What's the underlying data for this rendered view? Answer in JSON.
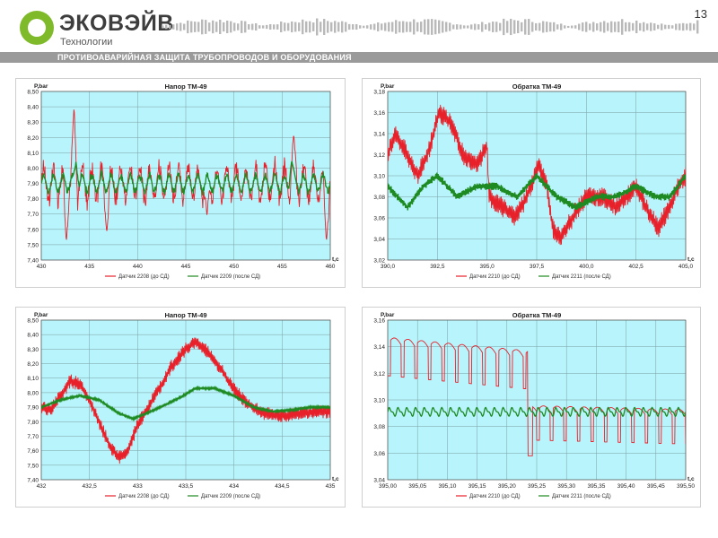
{
  "header": {
    "logo_name": "ЭКОВЭЙВ",
    "logo_sub": "Технологии",
    "page_number": "13",
    "banner": "ПРОТИВОАВАРИЙНАЯ ЗАЩИТА ТРУБОПРОВОДОВ И ОБОРУДОВАНИЯ",
    "colors": {
      "logo": "#7fba2a",
      "banner": "#9a9a9a"
    }
  },
  "chart_data": [
    {
      "type": "line",
      "title": "Напор ТМ-49",
      "ylabel": "P,bar",
      "xlabel": "t,c",
      "xlim": [
        430,
        460
      ],
      "ylim": [
        7.4,
        8.5
      ],
      "xticks": [
        "430",
        "435",
        "440",
        "445",
        "450",
        "455",
        "460"
      ],
      "yticks": [
        "7,40",
        "7,50",
        "7,60",
        "7,70",
        "7,80",
        "7,90",
        "8,00",
        "8,10",
        "8,20",
        "8,30",
        "8,40",
        "8,50"
      ],
      "grid": true,
      "legend_position": "bottom",
      "series": [
        {
          "name": "Датчик 2208 (до СД)",
          "color": "#e8202a",
          "base": 7.9,
          "osc_amp": 0.12,
          "osc_period": 1.0,
          "noise": 0.08,
          "extremes": [
            [
              433.4,
              8.4
            ],
            [
              432.6,
              7.52
            ],
            [
              436.8,
              7.58
            ],
            [
              447.2,
              7.68
            ],
            [
              456.2,
              8.22
            ],
            [
              459.6,
              7.52
            ]
          ]
        },
        {
          "name": "Датчик 2209 (после СД)",
          "color": "#1e8a22",
          "base": 7.9,
          "osc_amp": 0.06,
          "osc_period": 1.0,
          "noise": 0.02,
          "extremes": [
            [
              433.6,
              8.04
            ],
            [
              456.0,
              8.05
            ]
          ]
        }
      ]
    },
    {
      "type": "line",
      "title": "Обратка ТМ-49",
      "ylabel": "P,bar",
      "xlabel": "t,c",
      "xlim": [
        390,
        405
      ],
      "ylim": [
        3.02,
        3.18
      ],
      "xticks": [
        "390,0",
        "392,5",
        "395,0",
        "397,5",
        "400,0",
        "402,5",
        "405,0"
      ],
      "yticks": [
        "3,02",
        "3,04",
        "3,06",
        "3,08",
        "3,10",
        "3,12",
        "3,14",
        "3,16",
        "3,18"
      ],
      "grid": true,
      "legend_position": "bottom",
      "series": [
        {
          "name": "Датчик 2210 (до СД)",
          "color": "#e8202a",
          "noise": 0.008,
          "points": [
            [
              390.0,
              3.12
            ],
            [
              390.4,
              3.14
            ],
            [
              391.0,
              3.12
            ],
            [
              391.5,
              3.1
            ],
            [
              392.0,
              3.12
            ],
            [
              392.6,
              3.16
            ],
            [
              393.2,
              3.15
            ],
            [
              393.8,
              3.12
            ],
            [
              394.5,
              3.11
            ],
            [
              395.0,
              3.13
            ],
            [
              395.1,
              3.08
            ],
            [
              395.8,
              3.07
            ],
            [
              396.4,
              3.06
            ],
            [
              397.0,
              3.08
            ],
            [
              397.6,
              3.11
            ],
            [
              398.0,
              3.09
            ],
            [
              398.3,
              3.05
            ],
            [
              398.7,
              3.04
            ],
            [
              399.3,
              3.06
            ],
            [
              400.0,
              3.08
            ],
            [
              400.8,
              3.08
            ],
            [
              401.5,
              3.07
            ],
            [
              402.0,
              3.08
            ],
            [
              402.5,
              3.09
            ],
            [
              403.0,
              3.07
            ],
            [
              403.6,
              3.05
            ],
            [
              404.2,
              3.07
            ],
            [
              404.6,
              3.09
            ],
            [
              405.0,
              3.1
            ]
          ]
        },
        {
          "name": "Датчик 2211 (после СД)",
          "color": "#1e8a22",
          "noise": 0.003,
          "points": [
            [
              390.0,
              3.09
            ],
            [
              391.0,
              3.07
            ],
            [
              391.8,
              3.09
            ],
            [
              392.5,
              3.1
            ],
            [
              393.5,
              3.08
            ],
            [
              394.5,
              3.09
            ],
            [
              395.5,
              3.09
            ],
            [
              396.5,
              3.08
            ],
            [
              397.5,
              3.1
            ],
            [
              398.5,
              3.08
            ],
            [
              399.5,
              3.07
            ],
            [
              400.5,
              3.08
            ],
            [
              401.5,
              3.08
            ],
            [
              402.5,
              3.09
            ],
            [
              403.5,
              3.08
            ],
            [
              404.2,
              3.08
            ],
            [
              405.0,
              3.1
            ]
          ]
        }
      ]
    },
    {
      "type": "line",
      "title": "Напор ТМ-49",
      "ylabel": "P,bar",
      "xlabel": "t,c",
      "xlim": [
        432,
        435
      ],
      "ylim": [
        7.4,
        8.5
      ],
      "xticks": [
        "432",
        "432,5",
        "433",
        "433,5",
        "434",
        "434,5",
        "435"
      ],
      "yticks": [
        "7,40",
        "7,50",
        "7,60",
        "7,70",
        "7,80",
        "7,90",
        "8,00",
        "8,10",
        "8,20",
        "8,30",
        "8,40",
        "8,50"
      ],
      "grid": true,
      "legend_position": "bottom",
      "series": [
        {
          "name": "Датчик 2208 (до СД)",
          "color": "#e8202a",
          "noise": 0.04,
          "points": [
            [
              432.0,
              7.9
            ],
            [
              432.1,
              7.88
            ],
            [
              432.2,
              7.98
            ],
            [
              432.3,
              8.08
            ],
            [
              432.4,
              8.06
            ],
            [
              432.5,
              7.95
            ],
            [
              432.6,
              7.8
            ],
            [
              432.7,
              7.65
            ],
            [
              432.8,
              7.55
            ],
            [
              432.9,
              7.6
            ],
            [
              433.0,
              7.78
            ],
            [
              433.2,
              8.0
            ],
            [
              433.35,
              8.18
            ],
            [
              433.5,
              8.3
            ],
            [
              433.6,
              8.35
            ],
            [
              433.7,
              8.3
            ],
            [
              433.85,
              8.18
            ],
            [
              434.0,
              8.02
            ],
            [
              434.15,
              7.92
            ],
            [
              434.3,
              7.86
            ],
            [
              434.5,
              7.84
            ],
            [
              434.7,
              7.86
            ],
            [
              435.0,
              7.87
            ]
          ]
        },
        {
          "name": "Датчик 2209 (после СД)",
          "color": "#1e8a22",
          "noise": 0.006,
          "points": [
            [
              432.0,
              7.9
            ],
            [
              432.2,
              7.95
            ],
            [
              432.4,
              7.98
            ],
            [
              432.6,
              7.95
            ],
            [
              432.8,
              7.86
            ],
            [
              432.95,
              7.82
            ],
            [
              433.1,
              7.86
            ],
            [
              433.3,
              7.92
            ],
            [
              433.45,
              7.97
            ],
            [
              433.6,
              8.03
            ],
            [
              433.8,
              8.03
            ],
            [
              434.0,
              7.98
            ],
            [
              434.2,
              7.9
            ],
            [
              434.4,
              7.87
            ],
            [
              434.6,
              7.88
            ],
            [
              434.8,
              7.9
            ],
            [
              435.0,
              7.9
            ]
          ]
        }
      ]
    },
    {
      "type": "line",
      "title": "Обратка ТМ-49",
      "ylabel": "P,bar",
      "xlabel": "t,c",
      "xlim": [
        395.0,
        395.5
      ],
      "ylim": [
        3.04,
        3.16
      ],
      "xticks": [
        "395,00",
        "395,05",
        "395,10",
        "395,15",
        "395,20",
        "395,25",
        "395,30",
        "395,35",
        "395,40",
        "395,45",
        "395,50"
      ],
      "yticks": [
        "3,04",
        "3,06",
        "3,08",
        "3,10",
        "3,12",
        "3,14",
        "3,16"
      ],
      "grid": true,
      "legend_position": "bottom",
      "series": [
        {
          "name": "Датчик 2210 (до СД)",
          "color": "#e8202a",
          "wave_count": 22,
          "wave_amp": 0.012,
          "step_at": 395.235,
          "levels_before": [
            3.135,
            3.125
          ],
          "levels_after": [
            3.085,
            3.082
          ],
          "drop_min": 3.058
        },
        {
          "name": "Датчик 2211 (после СД)",
          "color": "#1e8a22",
          "wave_count": 34,
          "wave_amp": 0.0025,
          "level": 3.091
        }
      ]
    }
  ]
}
